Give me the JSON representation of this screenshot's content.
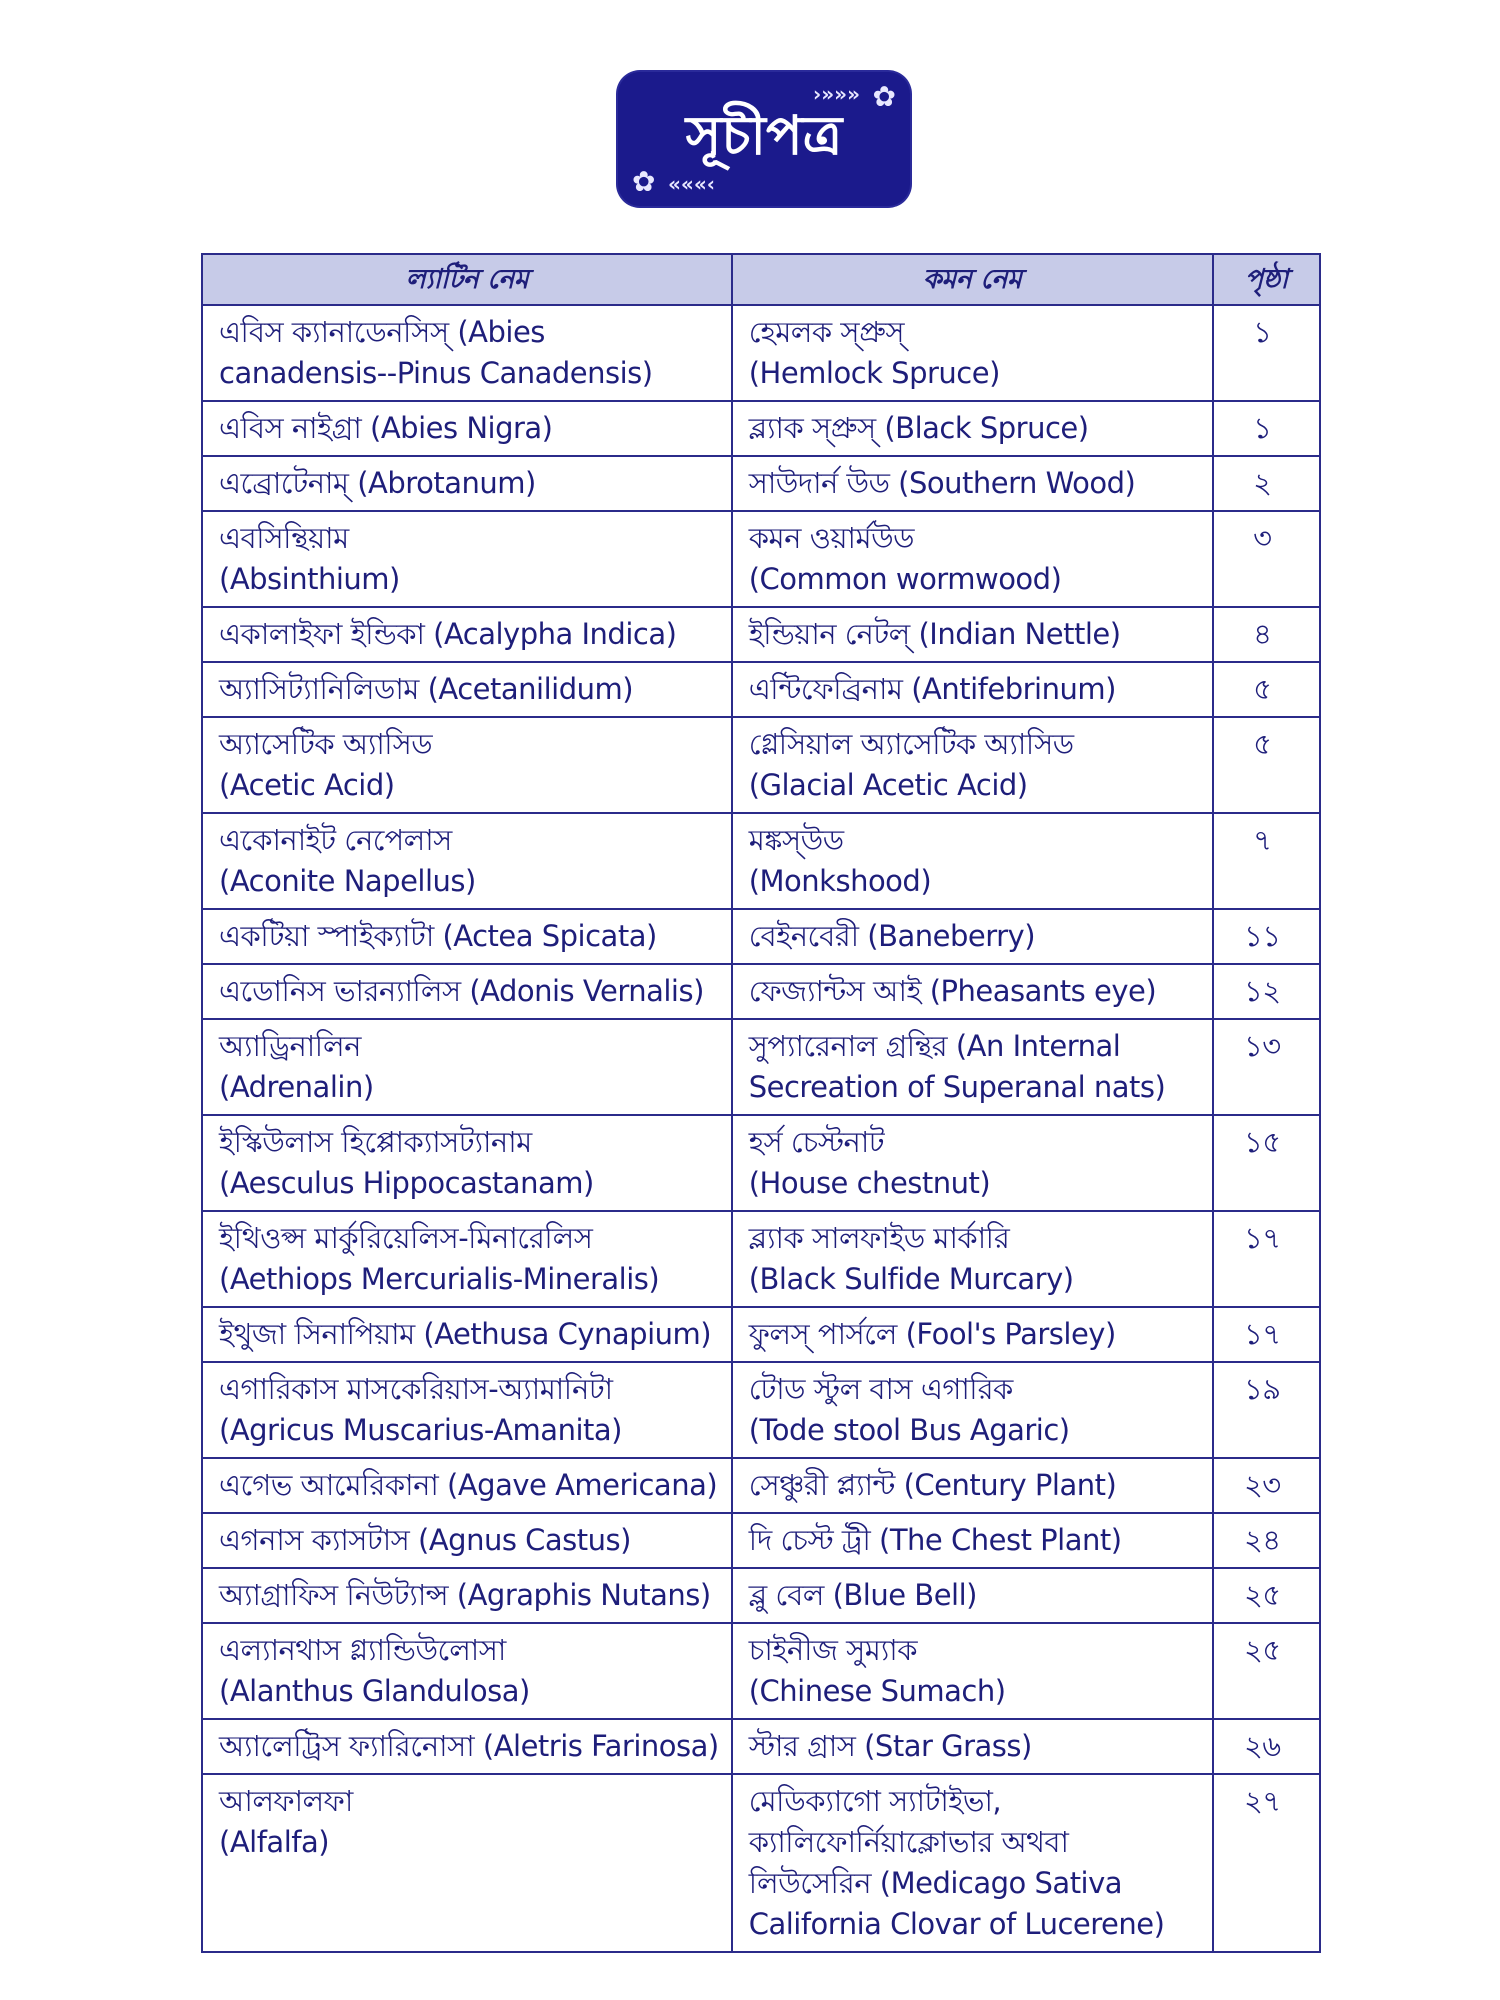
{
  "title": "সূচীপত্র",
  "headers": {
    "latin": "ল্যাটিন নেম",
    "common": "কমন নেম",
    "page": "পৃষ্ঠা"
  },
  "rows": [
    {
      "latin": [
        "এবিস ক্যানাডেনসিস্ (Abies",
        "canadensis--Pinus Canadensis)"
      ],
      "common": [
        "হেমলক স্প্রুস্",
        "(Hemlock Spruce)"
      ],
      "page": "১"
    },
    {
      "latin": [
        "এবিস নাইগ্রা (Abies Nigra)"
      ],
      "common": [
        "ব্ল্যাক স্প্রুস্ (Black Spruce)"
      ],
      "page": "১"
    },
    {
      "latin": [
        "এব্রোটেনাম্ (Abrotanum)"
      ],
      "common": [
        "সাউদার্ন উড (Southern Wood)"
      ],
      "page": "২"
    },
    {
      "latin": [
        "এবসিন্থিয়াম",
        "(Absinthium)"
      ],
      "common": [
        "কমন ওয়ার্মউড",
        "(Common wormwood)"
      ],
      "page": "৩"
    },
    {
      "latin": [
        "একালাইফা ইন্ডিকা (Acalypha Indica)"
      ],
      "common": [
        "ইন্ডিয়ান নেটল্ (Indian Nettle)"
      ],
      "page": "৪"
    },
    {
      "latin": [
        "অ্যাসিট্যানিলিডাম (Acetanilidum)"
      ],
      "common": [
        "এন্টিফেব্রিনাম (Antifebrinum)"
      ],
      "page": "৫"
    },
    {
      "latin": [
        "অ্যাসেটিক অ্যাসিড",
        "(Acetic Acid)"
      ],
      "common": [
        "গ্লেসিয়াল অ্যাসেটিক অ্যাসিড",
        "(Glacial Acetic Acid)"
      ],
      "page": "৫"
    },
    {
      "latin": [
        "একোনাইট নেপেলাস",
        "(Aconite Napellus)"
      ],
      "common": [
        "মঙ্কস্উড",
        "(Monkshood)"
      ],
      "page": "৭"
    },
    {
      "latin": [
        "একটিয়া স্পাইক্যাটা (Actea Spicata)"
      ],
      "common": [
        "বেইনবেরী (Baneberry)"
      ],
      "page": "১১"
    },
    {
      "latin": [
        "এডোনিস ভারন্যালিস (Adonis Vernalis)"
      ],
      "common": [
        "ফেজ্যান্টস আই (Pheasants eye)"
      ],
      "page": "১২"
    },
    {
      "latin": [
        "অ্যাড্রিনালিন",
        "(Adrenalin)"
      ],
      "common": [
        "সুপ্যারেনাল গ্রন্থির (An Internal",
        "Secreation of Superanal nats)"
      ],
      "page": "১৩"
    },
    {
      "latin": [
        "ইস্কিউলাস হিপ্পোক্যাসট্যানাম",
        "(Aesculus Hippocastanam)"
      ],
      "common": [
        "হর্স চেস্টনাট",
        "(House chestnut)"
      ],
      "page": "১৫"
    },
    {
      "latin": [
        "ইথিওপ্স মার্কুরিয়েলিস-মিনারেলিস",
        "(Aethiops Mercurialis-Mineralis)"
      ],
      "common": [
        "ব্ল্যাক সালফাইড মার্কারি",
        "(Black Sulfide Murcary)"
      ],
      "page": "১৭"
    },
    {
      "latin": [
        "ইথুজা সিনাপিয়াম (Aethusa Cynapium)"
      ],
      "common": [
        "ফুলস্ পার্সলে (Fool's Parsley)"
      ],
      "page": "১৭"
    },
    {
      "latin": [
        "এগারিকাস মাসকেরিয়াস-অ্যামানিটা",
        "(Agricus Muscarius-Amanita)"
      ],
      "common": [
        "টোড স্টুল বাস এগারিক",
        "(Tode stool Bus Agaric)"
      ],
      "page": "১৯"
    },
    {
      "latin": [
        "এগেভ আমেরিকানা (Agave Americana)"
      ],
      "common": [
        "সেঞ্চুরী প্ল্যান্ট (Century Plant)"
      ],
      "page": "২৩"
    },
    {
      "latin": [
        "এগনাস ক্যাসটাস (Agnus Castus)"
      ],
      "common": [
        "দি চেস্ট ট্রী (The Chest Plant)"
      ],
      "page": "২৪"
    },
    {
      "latin": [
        "অ্যাগ্রাফিস নিউট্যান্স (Agraphis Nutans)"
      ],
      "common": [
        "ব্লু বেল (Blue Bell)"
      ],
      "page": "২৫"
    },
    {
      "latin": [
        "এল্যানথাস গ্ল্যান্ডিউলোসা",
        "(Alanthus Glandulosa)"
      ],
      "common": [
        "চাইনীজ সুম্যাক",
        "(Chinese Sumach)"
      ],
      "page": "২৫"
    },
    {
      "latin": [
        "অ্যালেট্রিস ফ্যারিনোসা (Aletris Farinosa)"
      ],
      "common": [
        "স্টার গ্রাস (Star Grass)"
      ],
      "page": "২৬"
    },
    {
      "latin": [
        "আলফালফা",
        "(Alfalfa)"
      ],
      "common": [
        "মেডিক্যাগো স্যাটাইভা,",
        "ক্যালিফোর্নিয়াক্লোভার অথবা",
        "লিউসেরিন (Medicago Sativa",
        "California Clovar of Lucerene)"
      ],
      "page": "২৭"
    }
  ]
}
